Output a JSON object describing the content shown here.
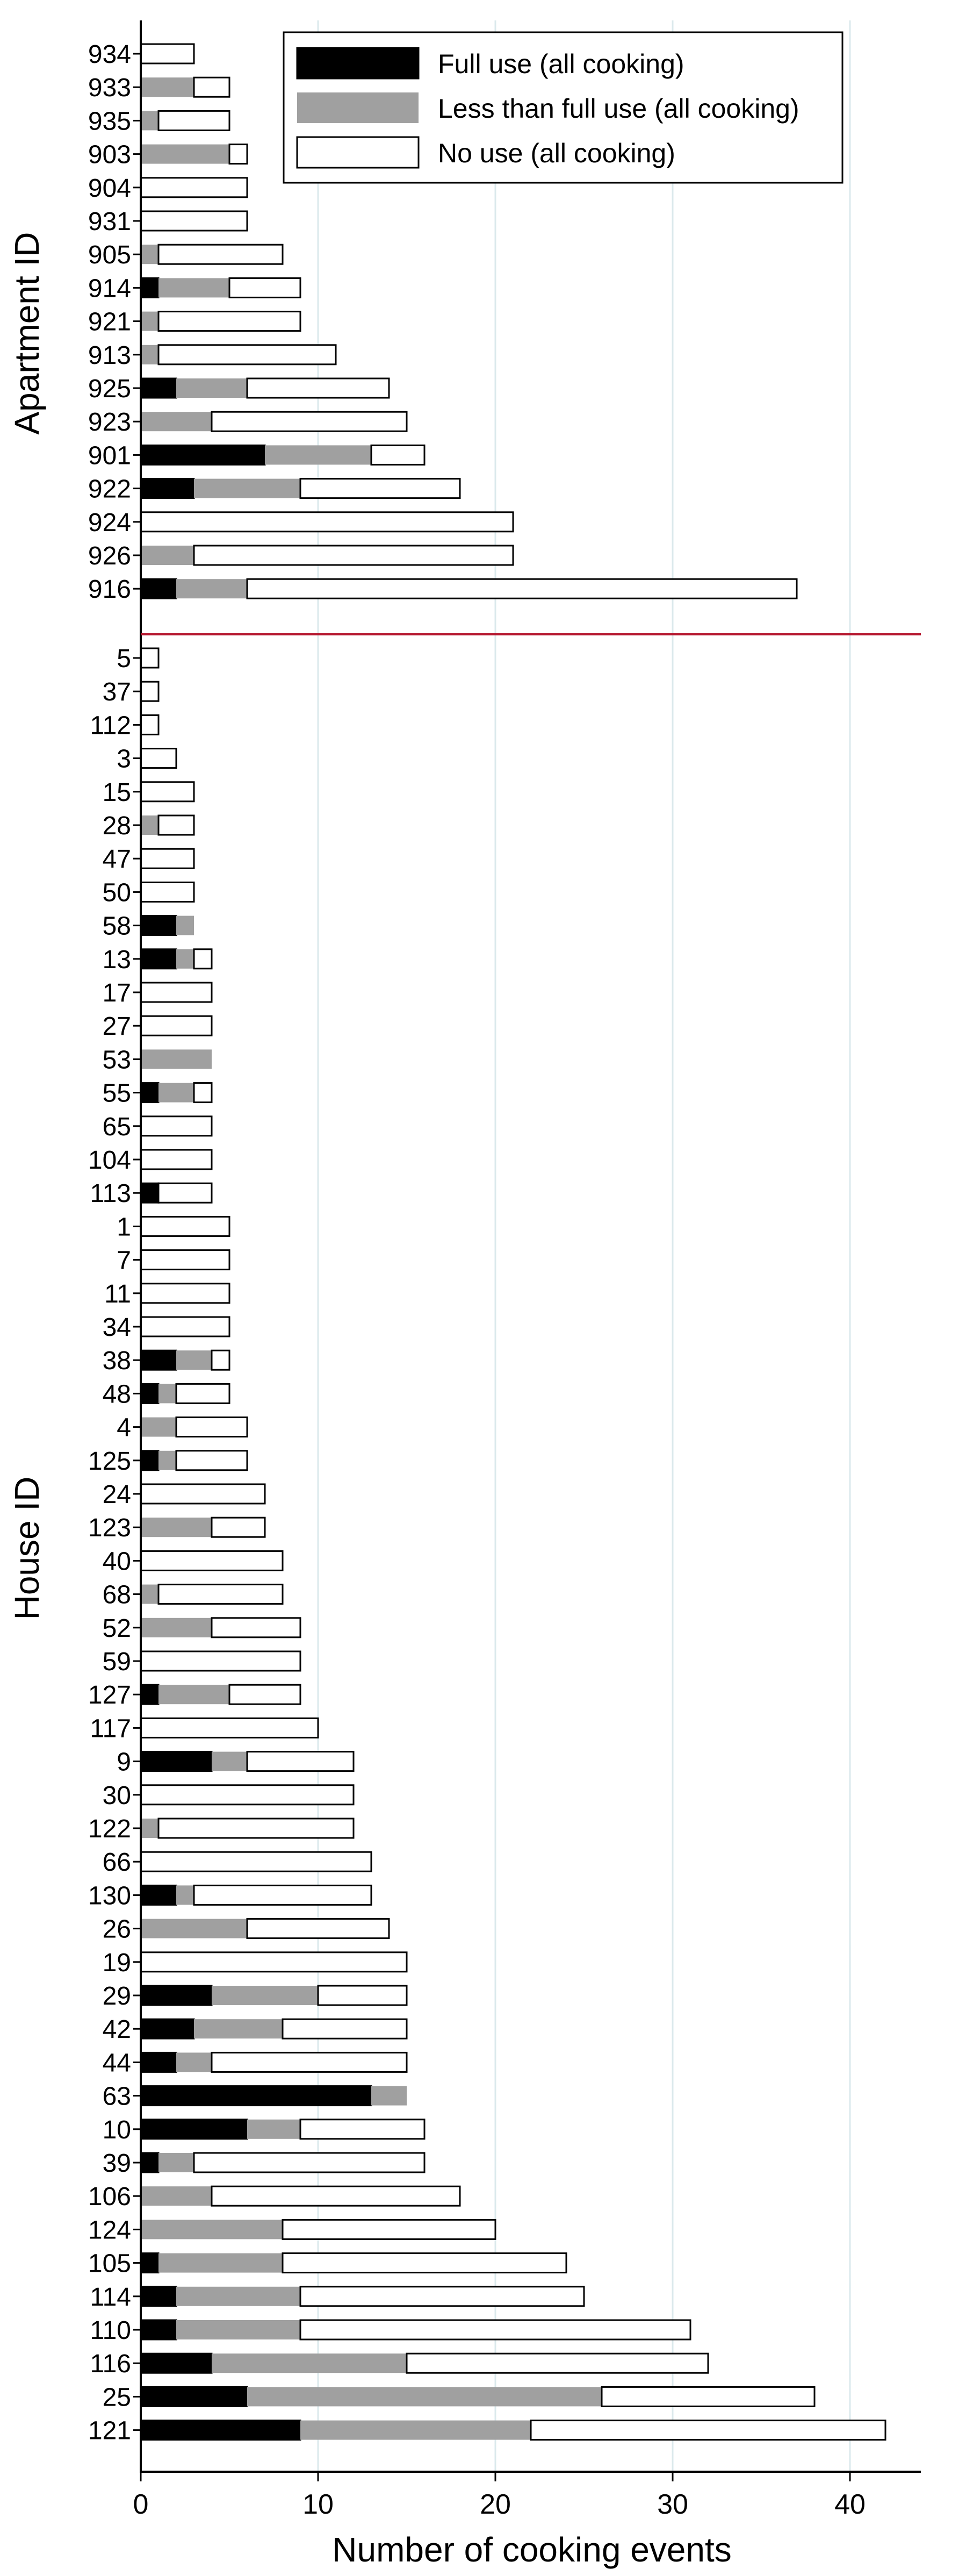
{
  "chart_data": {
    "type": "bar",
    "orientation": "horizontal",
    "stacked": true,
    "xlabel": "Number of cooking events",
    "xlim": [
      0,
      44
    ],
    "xticks": [
      0,
      10,
      20,
      30,
      40
    ],
    "grid": "vertical",
    "legend_placement": "top-right",
    "colors": {
      "full": "#000000",
      "less": "#a0a0a0",
      "none": "#ffffff",
      "gridline": "#dbe9ec",
      "divider": "#b5162e",
      "axis": "#000000"
    },
    "series": [
      {
        "name": "Full use (all cooking)"
      },
      {
        "name": "Less than full use (all cooking)"
      },
      {
        "name": "No use (all cooking)"
      }
    ],
    "groups": [
      {
        "label": "Apartment ID",
        "bars": [
          {
            "id": "934",
            "full": 0,
            "less": 0,
            "none": 3
          },
          {
            "id": "933",
            "full": 0,
            "less": 3,
            "none": 2
          },
          {
            "id": "935",
            "full": 0,
            "less": 1,
            "none": 4
          },
          {
            "id": "903",
            "full": 0,
            "less": 5,
            "none": 1
          },
          {
            "id": "904",
            "full": 0,
            "less": 0,
            "none": 6
          },
          {
            "id": "931",
            "full": 0,
            "less": 0,
            "none": 6
          },
          {
            "id": "905",
            "full": 0,
            "less": 1,
            "none": 7
          },
          {
            "id": "914",
            "full": 1,
            "less": 4,
            "none": 4
          },
          {
            "id": "921",
            "full": 0,
            "less": 1,
            "none": 8
          },
          {
            "id": "913",
            "full": 0,
            "less": 1,
            "none": 10
          },
          {
            "id": "925",
            "full": 2,
            "less": 4,
            "none": 8
          },
          {
            "id": "923",
            "full": 0,
            "less": 4,
            "none": 11
          },
          {
            "id": "901",
            "full": 7,
            "less": 6,
            "none": 3
          },
          {
            "id": "922",
            "full": 3,
            "less": 6,
            "none": 9
          },
          {
            "id": "924",
            "full": 0,
            "less": 0,
            "none": 21
          },
          {
            "id": "926",
            "full": 0,
            "less": 3,
            "none": 18
          },
          {
            "id": "916",
            "full": 2,
            "less": 4,
            "none": 31
          }
        ]
      },
      {
        "label": "House ID",
        "bars": [
          {
            "id": "5",
            "full": 0,
            "less": 0,
            "none": 1
          },
          {
            "id": "37",
            "full": 0,
            "less": 0,
            "none": 1
          },
          {
            "id": "112",
            "full": 0,
            "less": 0,
            "none": 1
          },
          {
            "id": "3",
            "full": 0,
            "less": 0,
            "none": 2
          },
          {
            "id": "15",
            "full": 0,
            "less": 0,
            "none": 3
          },
          {
            "id": "28",
            "full": 0,
            "less": 1,
            "none": 2
          },
          {
            "id": "47",
            "full": 0,
            "less": 0,
            "none": 3
          },
          {
            "id": "50",
            "full": 0,
            "less": 0,
            "none": 3
          },
          {
            "id": "58",
            "full": 2,
            "less": 1,
            "none": 0
          },
          {
            "id": "13",
            "full": 2,
            "less": 1,
            "none": 1
          },
          {
            "id": "17",
            "full": 0,
            "less": 0,
            "none": 4
          },
          {
            "id": "27",
            "full": 0,
            "less": 0,
            "none": 4
          },
          {
            "id": "53",
            "full": 0,
            "less": 4,
            "none": 0
          },
          {
            "id": "55",
            "full": 1,
            "less": 2,
            "none": 1
          },
          {
            "id": "65",
            "full": 0,
            "less": 0,
            "none": 4
          },
          {
            "id": "104",
            "full": 0,
            "less": 0,
            "none": 4
          },
          {
            "id": "113",
            "full": 1,
            "less": 0,
            "none": 3
          },
          {
            "id": "1",
            "full": 0,
            "less": 0,
            "none": 5
          },
          {
            "id": "7",
            "full": 0,
            "less": 0,
            "none": 5
          },
          {
            "id": "11",
            "full": 0,
            "less": 0,
            "none": 5
          },
          {
            "id": "34",
            "full": 0,
            "less": 0,
            "none": 5
          },
          {
            "id": "38",
            "full": 2,
            "less": 2,
            "none": 1
          },
          {
            "id": "48",
            "full": 1,
            "less": 1,
            "none": 3
          },
          {
            "id": "4",
            "full": 0,
            "less": 2,
            "none": 4
          },
          {
            "id": "125",
            "full": 1,
            "less": 1,
            "none": 4
          },
          {
            "id": "24",
            "full": 0,
            "less": 0,
            "none": 7
          },
          {
            "id": "123",
            "full": 0,
            "less": 4,
            "none": 3
          },
          {
            "id": "40",
            "full": 0,
            "less": 0,
            "none": 8
          },
          {
            "id": "68",
            "full": 0,
            "less": 1,
            "none": 7
          },
          {
            "id": "52",
            "full": 0,
            "less": 4,
            "none": 5
          },
          {
            "id": "59",
            "full": 0,
            "less": 0,
            "none": 9
          },
          {
            "id": "127",
            "full": 1,
            "less": 4,
            "none": 4
          },
          {
            "id": "117",
            "full": 0,
            "less": 0,
            "none": 10
          },
          {
            "id": "9",
            "full": 4,
            "less": 2,
            "none": 6
          },
          {
            "id": "30",
            "full": 0,
            "less": 0,
            "none": 12
          },
          {
            "id": "122",
            "full": 0,
            "less": 1,
            "none": 11
          },
          {
            "id": "66",
            "full": 0,
            "less": 0,
            "none": 13
          },
          {
            "id": "130",
            "full": 2,
            "less": 1,
            "none": 10
          },
          {
            "id": "26",
            "full": 0,
            "less": 6,
            "none": 8
          },
          {
            "id": "19",
            "full": 0,
            "less": 0,
            "none": 15
          },
          {
            "id": "29",
            "full": 4,
            "less": 6,
            "none": 5
          },
          {
            "id": "42",
            "full": 3,
            "less": 5,
            "none": 7
          },
          {
            "id": "44",
            "full": 2,
            "less": 2,
            "none": 11
          },
          {
            "id": "63",
            "full": 13,
            "less": 2,
            "none": 0
          },
          {
            "id": "10",
            "full": 6,
            "less": 3,
            "none": 7
          },
          {
            "id": "39",
            "full": 1,
            "less": 2,
            "none": 13
          },
          {
            "id": "106",
            "full": 0,
            "less": 4,
            "none": 14
          },
          {
            "id": "124",
            "full": 0,
            "less": 8,
            "none": 12
          },
          {
            "id": "105",
            "full": 1,
            "less": 7,
            "none": 16
          },
          {
            "id": "114",
            "full": 2,
            "less": 7,
            "none": 16
          },
          {
            "id": "110",
            "full": 2,
            "less": 7,
            "none": 22
          },
          {
            "id": "116",
            "full": 4,
            "less": 11,
            "none": 17
          },
          {
            "id": "25",
            "full": 6,
            "less": 20,
            "none": 12
          },
          {
            "id": "121",
            "full": 9,
            "less": 13,
            "none": 20
          }
        ]
      }
    ]
  }
}
